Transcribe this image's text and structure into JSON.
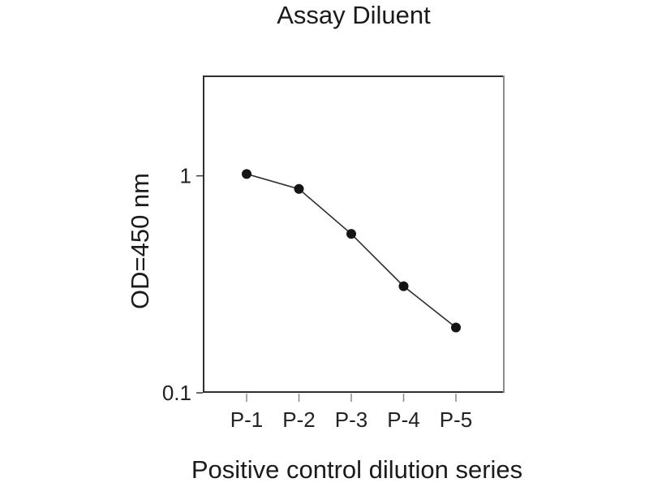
{
  "chart_data": {
    "type": "line",
    "title": "Assay Diluent",
    "xlabel": "Positive control dilution series",
    "ylabel": "OD=450 nm",
    "categories": [
      "P-1",
      "P-2",
      "P-3",
      "P-4",
      "P-5"
    ],
    "values": [
      1.02,
      0.87,
      0.54,
      0.31,
      0.2
    ],
    "y_scale": "log",
    "ylim": [
      0.1,
      2.9
    ],
    "y_ticks": [
      {
        "value": 1,
        "label": "1"
      },
      {
        "value": 0.1,
        "label": "0.1"
      }
    ],
    "grid": false,
    "legend": "none",
    "marker": "filled-circle",
    "colors": {
      "background": "#ffffff",
      "text": "#1b1b1b",
      "box": "#2e2e2e",
      "box_right": "#8a8a8a",
      "line": "#2e2e2e",
      "marker": "#141414",
      "y_tick": "#3a3a3a",
      "x_tick": "#8a8a8a"
    }
  }
}
